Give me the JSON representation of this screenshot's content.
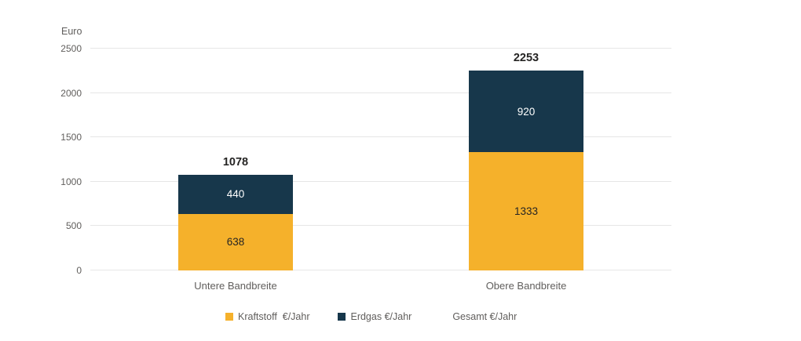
{
  "chart_data": {
    "type": "bar",
    "stacked": true,
    "title": "",
    "y_axis_title": "Euro",
    "categories": [
      "Untere Bandbreite",
      "Obere Bandbreite"
    ],
    "series": [
      {
        "name": "Kraftstoff  €/Jahr",
        "color": "#F5B12B",
        "label_color": "#252423",
        "values": [
          638,
          1333
        ]
      },
      {
        "name": "Erdgas €/Jahr",
        "color": "#17374B",
        "label_color": "#FFFFFF",
        "values": [
          440,
          920
        ]
      },
      {
        "name": "Gesamt €/Jahr",
        "color": "#FFFFFF",
        "label_color": "#252423",
        "values": [
          1078,
          2253
        ]
      }
    ],
    "totals": [
      1078,
      2253
    ],
    "y_ticks": [
      0,
      500,
      1000,
      1500,
      2000,
      2500
    ],
    "ylim": [
      0,
      2500
    ],
    "grid": true,
    "legend_position": "bottom",
    "colors": {
      "gridline": "#E6E6E6",
      "axis_text": "#605E5C",
      "total_text": "#252423",
      "background": "#FFFFFF"
    }
  }
}
